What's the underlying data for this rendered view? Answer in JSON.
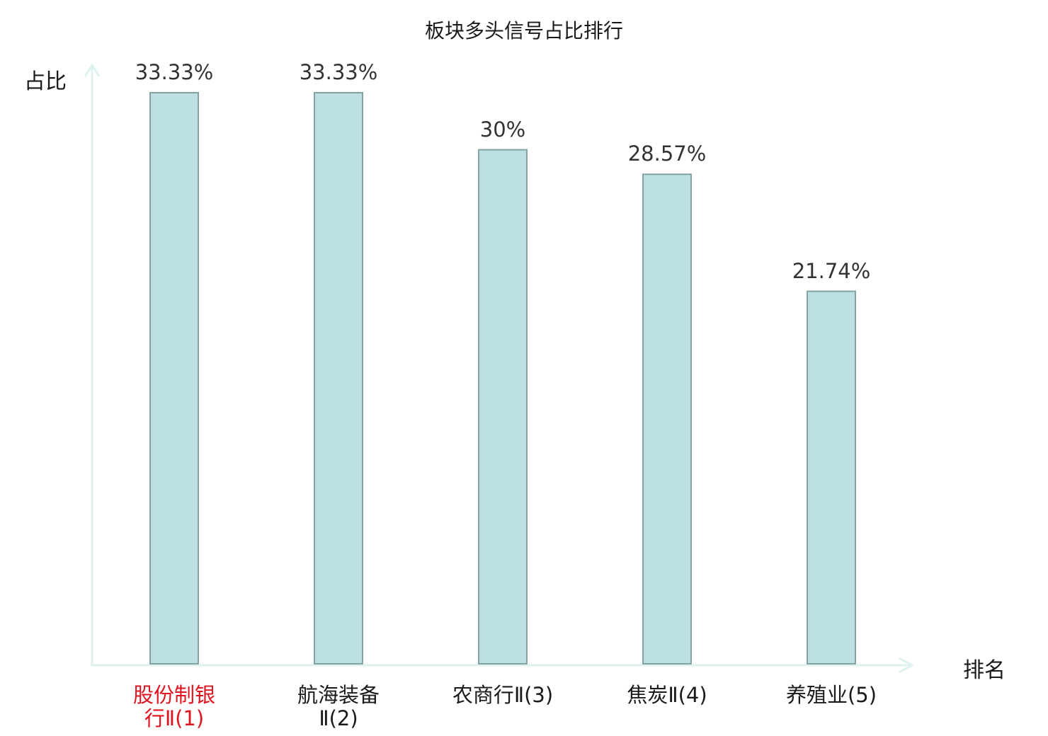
{
  "chart_data": {
    "type": "bar",
    "title": "板块多头信号占比排行",
    "ylabel": "占比",
    "xlabel": "排名",
    "categories": [
      {
        "name": "股份制银行Ⅱ",
        "rank": "(1)",
        "line1": "股份制银",
        "line2": "行Ⅱ(1)"
      },
      {
        "name": "航海装备Ⅱ",
        "rank": "(2)",
        "line1": "航海装备",
        "line2": "Ⅱ(2)"
      },
      {
        "name": "农商行Ⅱ",
        "rank": "(3)",
        "line1": "农商行Ⅱ(3)",
        "line2": ""
      },
      {
        "name": "焦炭Ⅱ",
        "rank": "(4)",
        "line1": "焦炭Ⅱ(4)",
        "line2": ""
      },
      {
        "name": "养殖业",
        "rank": "(5)",
        "line1": "养殖业(5)",
        "line2": ""
      }
    ],
    "values": [
      33.33,
      33.33,
      30,
      28.57,
      21.74
    ],
    "value_labels": [
      "33.33%",
      "33.33%",
      "30%",
      "28.57%",
      "21.74%"
    ],
    "ylim": [
      0,
      33.33
    ],
    "highlight_index": 0,
    "grid": false,
    "colors": {
      "bar_fill": "#bce0e2",
      "bar_stroke": "#84a2a4",
      "axis": "#dff2ef",
      "highlight_label": "#e0141e"
    }
  }
}
